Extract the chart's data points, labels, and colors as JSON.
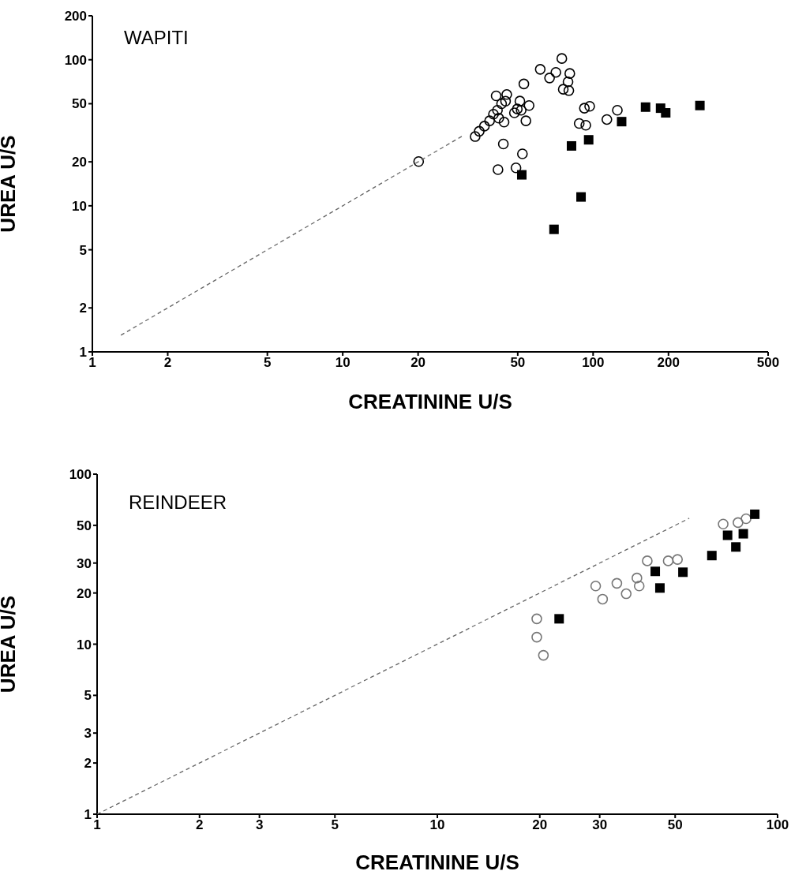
{
  "chart_data": [
    {
      "type": "scatter",
      "title": "WAPITI",
      "xlabel": "CREATININE U/S",
      "ylabel": "UREA U/S",
      "log": "xy",
      "grid": false,
      "xlim": [
        1,
        500
      ],
      "xticks": [
        1,
        2,
        5,
        10,
        20,
        50,
        100,
        200,
        500
      ],
      "ylim": [
        1,
        200
      ],
      "yticks": [
        1,
        2,
        5,
        10,
        20,
        50,
        100,
        200
      ],
      "series": [
        {
          "marker": "circle",
          "color": "#000000",
          "x": [
            20.1,
            75,
            61.5,
            71,
            80.7,
            67,
            79.4,
            76,
            80,
            52.9,
            41,
            45.2,
            51,
            55.5,
            44.7,
            43.1,
            41.5,
            49.8,
            51.6,
            48.5,
            40,
            42,
            44.1,
            38.6,
            36.8,
            35.1,
            33.8,
            53.9,
            43.8,
            52.2,
            41.7,
            49.2,
            92.3,
            96.9,
            88,
            93.5,
            113.5,
            125
          ],
          "values": [
            20.1,
            102,
            86,
            82,
            80.5,
            75,
            70.6,
            62.8,
            61.5,
            68.3,
            56.6,
            57.8,
            52.1,
            48.6,
            52,
            50,
            45.1,
            46,
            45.1,
            43.3,
            42.4,
            39.8,
            37.4,
            38.2,
            35.1,
            32.4,
            29.8,
            38.2,
            26.5,
            22.7,
            17.7,
            18.2,
            46.6,
            48,
            36.6,
            35.6,
            39,
            45.1
          ]
        },
        {
          "marker": "square",
          "color": "#000000",
          "x": [
            162,
            186,
            195,
            267,
            130,
            96,
            82,
            51.9,
            89.5,
            69.8
          ],
          "values": [
            47.4,
            46.6,
            43.3,
            48.6,
            37.7,
            28.3,
            25.7,
            16.3,
            11.5,
            6.9
          ]
        },
        {
          "type": "line",
          "marker": "none",
          "line_style": "dashed",
          "color": "#666666",
          "x": [
            1.3,
            30
          ],
          "values": [
            1.3,
            30
          ]
        }
      ]
    },
    {
      "type": "scatter",
      "title": "REINDEER",
      "xlabel": "CREATININE U/S",
      "ylabel": "UREA U/S",
      "log": "xy",
      "grid": false,
      "xlim": [
        1,
        100
      ],
      "xticks": [
        1,
        2,
        3,
        5,
        10,
        20,
        30,
        50,
        100
      ],
      "ylim": [
        1,
        100
      ],
      "yticks": [
        1,
        2,
        3,
        5,
        10,
        20,
        30,
        50,
        100
      ],
      "series": [
        {
          "marker": "circle",
          "color": "#777777",
          "x": [
            69.2,
            76.5,
            80.8,
            50.8,
            47.7,
            41.4,
            38.6,
            39.2,
            33.7,
            29.2,
            30.6,
            35.9,
            19.6,
            19.6,
            20.5
          ],
          "values": [
            50.9,
            51.9,
            54.7,
            31.5,
            30.9,
            30.9,
            24.5,
            22,
            22.8,
            22,
            18.4,
            19.8,
            14.1,
            11,
            8.6
          ]
        },
        {
          "marker": "square",
          "color": "#000000",
          "x": [
            85.7,
            71.3,
            79.3,
            75.4,
            64.1,
            43.7,
            52.7,
            45.1,
            22.8
          ],
          "values": [
            58.1,
            43.7,
            44.6,
            37.3,
            33.2,
            26.8,
            26.5,
            21.4,
            14.1
          ]
        },
        {
          "type": "line",
          "marker": "none",
          "line_style": "dashed",
          "color": "#666666",
          "x": [
            1,
            55
          ],
          "values": [
            1,
            55
          ]
        }
      ]
    }
  ]
}
